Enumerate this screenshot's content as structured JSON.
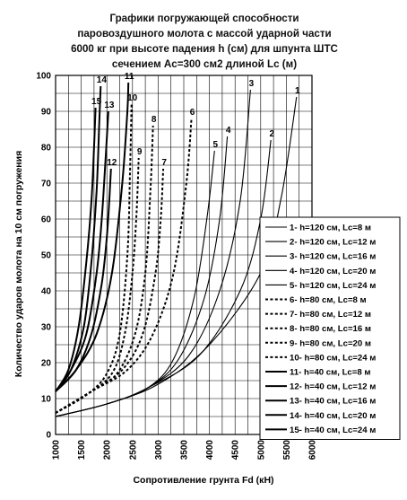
{
  "title_lines": [
    "Графики погружающей способности",
    "паровоздушного молота с массой ударной части",
    "6000 кг при высоте падения h (см) для шпунта ШТС",
    "сечением Ac=300 см2 длиной Lc (м)"
  ],
  "chart_data": {
    "type": "line",
    "xlabel": "Сопротивление грунта Fd (кН)",
    "ylabel": "Количество ударов молота на 10 см погружения",
    "xlim": [
      1000,
      6000
    ],
    "ylim": [
      0,
      100
    ],
    "x_ticks": [
      "1000",
      "1500",
      "2000",
      "2500",
      "3000",
      "3500",
      "4000",
      "4500",
      "5000",
      "5500",
      "6000"
    ],
    "y_ticks": [
      "0",
      "10",
      "20",
      "30",
      "40",
      "50",
      "60",
      "70",
      "80",
      "90",
      "100"
    ],
    "grid": true,
    "legend_placement": "right",
    "series": [
      {
        "id": "1",
        "name": "1- h=120 см, Lc=8 м",
        "style": "solid",
        "weight": "thin",
        "x": [
          1000,
          2000,
          3000,
          4000,
          5000,
          5400,
          5700
        ],
        "y": [
          5,
          8.5,
          14,
          25,
          45,
          66,
          94
        ]
      },
      {
        "id": "2",
        "name": "2- h=120 см, Lc=12 м",
        "style": "solid",
        "weight": "thin",
        "x": [
          1000,
          2000,
          2800,
          3800,
          4600,
          5000,
          5200
        ],
        "y": [
          5,
          8.5,
          13,
          22,
          40,
          60,
          82
        ]
      },
      {
        "id": "3",
        "name": "3- h=120 см, Lc=16 м",
        "style": "solid",
        "weight": "thin",
        "x": [
          1000,
          2000,
          2800,
          3600,
          4200,
          4600,
          4800
        ],
        "y": [
          5,
          8.5,
          13,
          22,
          40,
          65,
          96
        ]
      },
      {
        "id": "4",
        "name": "4- h=120 см, Lc=20 м",
        "style": "solid",
        "weight": "thin",
        "x": [
          1000,
          2000,
          2800,
          3400,
          3900,
          4200,
          4350
        ],
        "y": [
          5,
          8.5,
          13,
          21,
          38,
          60,
          83
        ]
      },
      {
        "id": "5",
        "name": "5- h=120 см, Lc=24 м",
        "style": "solid",
        "weight": "thin",
        "x": [
          1000,
          2000,
          2800,
          3300,
          3700,
          3950,
          4100
        ],
        "y": [
          5,
          8.5,
          13,
          21,
          38,
          60,
          79
        ]
      },
      {
        "id": "6",
        "name": "6- h=80 см, Lc=8 м",
        "style": "dashed",
        "weight": "bold",
        "x": [
          1000,
          1700,
          2400,
          2900,
          3300,
          3550,
          3650
        ],
        "y": [
          6,
          12,
          18,
          28,
          45,
          70,
          88
        ]
      },
      {
        "id": "7",
        "name": "7- h=80 см, Lc=12 м",
        "style": "dashed",
        "weight": "bold",
        "x": [
          1000,
          1700,
          2300,
          2700,
          2950,
          3050,
          3100
        ],
        "y": [
          6,
          12,
          18,
          28,
          45,
          60,
          74
        ]
      },
      {
        "id": "8",
        "name": "8- h=80 см, Lc=16 м",
        "style": "dashed",
        "weight": "bold",
        "x": [
          1000,
          1700,
          2200,
          2550,
          2750,
          2850,
          2900
        ],
        "y": [
          6,
          12,
          17,
          28,
          45,
          68,
          86
        ]
      },
      {
        "id": "9",
        "name": "9- h=80 см, Lc=20 м",
        "style": "dashed",
        "weight": "bold",
        "x": [
          1000,
          1600,
          2100,
          2350,
          2500,
          2580,
          2620
        ],
        "y": [
          6,
          11,
          17,
          28,
          45,
          62,
          77
        ]
      },
      {
        "id": "10",
        "name": "10- h=80 см, Lc=24 м",
        "style": "dashed",
        "weight": "bold",
        "x": [
          1000,
          1600,
          2000,
          2250,
          2400,
          2450,
          2480
        ],
        "y": [
          6,
          11,
          17,
          28,
          50,
          72,
          92
        ]
      },
      {
        "id": "11",
        "name": "11- h=40 см, Lc=8 м",
        "style": "solid",
        "weight": "bold",
        "x": [
          1000,
          1400,
          1800,
          2100,
          2300,
          2400,
          2420
        ],
        "y": [
          12,
          18,
          28,
          45,
          70,
          90,
          98
        ]
      },
      {
        "id": "12",
        "name": "12- h=40 см, Lc=12 м",
        "style": "solid",
        "weight": "bold",
        "x": [
          1000,
          1400,
          1700,
          1900,
          2000,
          2050,
          2080
        ],
        "y": [
          12,
          18,
          28,
          42,
          55,
          66,
          74
        ]
      },
      {
        "id": "13",
        "name": "13- h=40 см, Lc=16 м",
        "style": "solid",
        "weight": "bold",
        "x": [
          1000,
          1300,
          1600,
          1800,
          1900,
          1980,
          2030
        ],
        "y": [
          12,
          18,
          28,
          45,
          60,
          78,
          90
        ]
      },
      {
        "id": "14",
        "name": "14- h=40 см, Lc=20 м",
        "style": "solid",
        "weight": "bold",
        "x": [
          1000,
          1300,
          1550,
          1700,
          1800,
          1850,
          1880
        ],
        "y": [
          12,
          18,
          30,
          48,
          68,
          86,
          97
        ]
      },
      {
        "id": "15",
        "name": "15- h=40 см, Lc=24 м",
        "style": "solid",
        "weight": "bold",
        "x": [
          1000,
          1250,
          1450,
          1600,
          1700,
          1750,
          1780
        ],
        "y": [
          12,
          18,
          30,
          48,
          65,
          80,
          91
        ]
      }
    ]
  }
}
